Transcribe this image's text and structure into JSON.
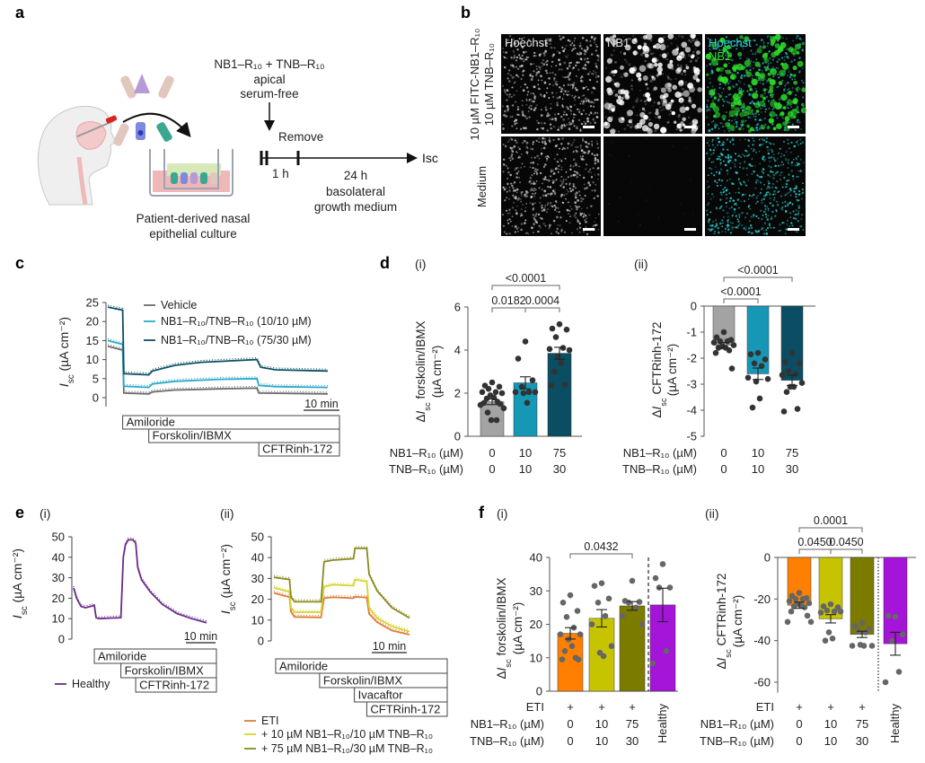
{
  "panel_labels": {
    "a": "a",
    "b": "b",
    "c": "c",
    "d": "d",
    "e": "e",
    "f": "f"
  },
  "schematic": {
    "treatment": "NB1–R₁₀ + TNB–R₁₀",
    "apical": "apical",
    "serum_free": "serum-free",
    "remove": "Remove",
    "t1": "1 h",
    "t2": "24 h",
    "basolateral": "basolateral",
    "growth_medium": "growth medium",
    "readout": "Isc",
    "culture_line1": "Patient-derived nasal",
    "culture_line2": "epithelial culture"
  },
  "microscopy": {
    "row_labels": [
      [
        "10 µM FITC-NB1–R₁₀",
        "10 µM TNB–R₁₀"
      ],
      [
        "Medium"
      ]
    ],
    "column_labels": [
      "Hoechst",
      "NB1"
    ],
    "merge_labels": [
      "Hoechst",
      "NB1"
    ],
    "colors": {
      "hoechst": "#2fd6d6",
      "nb1": "#2be02b"
    }
  },
  "chart_data": [
    {
      "type": "line",
      "ylabel": [
        "Isc (µA cm⁻²)"
      ],
      "ylim": [
        0,
        25
      ],
      "yticks": [
        0,
        5,
        10,
        15,
        20,
        25
      ],
      "xlim": [
        0,
        59
      ],
      "xunit": "min",
      "scale_bar": "10 min",
      "treatments": [
        {
          "label": "Amiloride",
          "start": 4
        },
        {
          "label": "Forskolin/IBMX",
          "start": 11
        },
        {
          "label": "CFTRinh-172",
          "start": 40.5
        }
      ],
      "series": [
        {
          "name": "Vehicle",
          "color": "#6b6b6b",
          "points": [
            [
              0,
              13.5
            ],
            [
              4,
              12.5
            ],
            [
              4.3,
              1.2
            ],
            [
              11,
              1
            ],
            [
              12,
              1.5
            ],
            [
              18,
              2
            ],
            [
              30,
              2.3
            ],
            [
              40,
              2.5
            ],
            [
              40.5,
              1.2
            ],
            [
              59,
              1
            ]
          ]
        },
        {
          "name": "NB1–R₁₀/TNB–R₁₀ (10/10 µM)",
          "color": "#2aa9c8",
          "points": [
            [
              0,
              15
            ],
            [
              4,
              14
            ],
            [
              4.3,
              3
            ],
            [
              11,
              2.7
            ],
            [
              12,
              3.6
            ],
            [
              18,
              4.3
            ],
            [
              30,
              4.8
            ],
            [
              40,
              5
            ],
            [
              40.5,
              3.2
            ],
            [
              45,
              2.9
            ],
            [
              59,
              2.7
            ]
          ]
        },
        {
          "name": "NB1–R₁₀/TNB–R₁₀ (75/30 µM)",
          "color": "#0d4f66",
          "points": [
            [
              0,
              23.8
            ],
            [
              4,
              23
            ],
            [
              4.3,
              6.3
            ],
            [
              11,
              6
            ],
            [
              12,
              7
            ],
            [
              18,
              8.5
            ],
            [
              25,
              9.3
            ],
            [
              40,
              10
            ],
            [
              41,
              8
            ],
            [
              45,
              7.3
            ],
            [
              59,
              7
            ]
          ]
        }
      ]
    },
    {
      "type": "bar",
      "sub_label": "(i)",
      "ylabel": [
        "ΔIsc forskolin/IBMX",
        "(µA cm⁻²)"
      ],
      "ylim": [
        0,
        6
      ],
      "yticks": [
        0,
        2,
        4,
        6
      ],
      "row_labels": [
        "NB1–R₁₀ (µM)",
        "TNB–R₁₀ (µM)"
      ],
      "categories": [
        [
          "0",
          "0"
        ],
        [
          "10",
          "10"
        ],
        [
          "75",
          "30"
        ]
      ],
      "values": [
        1.6,
        2.48,
        3.85
      ],
      "sem": [
        0.13,
        0.28,
        0.28
      ],
      "colors": [
        "#a3a3a3",
        "#1597b5",
        "#0b4d63"
      ],
      "point_color": "#333333",
      "points": [
        [
          2.5,
          2.35,
          2.3,
          2.2,
          2.05,
          2.05,
          2.0,
          1.9,
          1.8,
          1.75,
          1.6,
          1.55,
          1.5,
          1.45,
          1.3,
          1.1,
          0.75,
          0.75
        ],
        [
          4.4,
          3.6,
          2.6,
          2.3,
          2.05,
          2.05,
          2.05,
          2.0,
          1.55
        ],
        [
          5.2,
          5.0,
          4.95,
          4.6,
          4.1,
          4.05,
          4.0,
          3.7,
          3.4,
          3.0,
          2.4,
          2.35
        ]
      ],
      "comparisons": [
        {
          "from": 0,
          "to": 1,
          "p": "0.0182"
        },
        {
          "from": 1,
          "to": 2,
          "p": "0.0004"
        },
        {
          "from": 0,
          "to": 2,
          "p": "<0.0001"
        }
      ]
    },
    {
      "type": "bar",
      "sub_label": "(ii)",
      "ylabel": [
        "ΔIsc CFTRinh-172",
        "(µA cm⁻²)"
      ],
      "ylim": [
        -5,
        0
      ],
      "yticks": [
        0,
        -1,
        -2,
        -3,
        -4,
        -5
      ],
      "row_labels": [
        "NB1–R₁₀ (µM)",
        "TNB–R₁₀ (µM)"
      ],
      "categories": [
        [
          "0",
          "0"
        ],
        [
          "10",
          "10"
        ],
        [
          "75",
          "30"
        ]
      ],
      "values": [
        -1.5,
        -2.6,
        -2.85
      ],
      "sem": [
        0.1,
        0.22,
        0.2
      ],
      "colors": [
        "#a3a3a3",
        "#1597b5",
        "#0b4d63"
      ],
      "point_color": "#333333",
      "points": [
        [
          -1.0,
          -1.2,
          -1.3,
          -1.35,
          -1.35,
          -1.4,
          -1.5,
          -1.55,
          -1.6,
          -1.6,
          -1.7,
          -1.8,
          -2.4
        ],
        [
          -1.8,
          -1.85,
          -2.05,
          -2.2,
          -2.3,
          -2.75,
          -2.8,
          -2.9,
          -3.55,
          -3.9
        ],
        [
          -1.8,
          -2.15,
          -2.2,
          -2.5,
          -2.6,
          -2.65,
          -2.95,
          -3.1,
          -3.1,
          -3.3,
          -3.95,
          -4.05
        ]
      ],
      "comparisons": [
        {
          "from": 0,
          "to": 1,
          "p": "<0.0001"
        },
        {
          "from": 0,
          "to": 2,
          "p": "<0.0001"
        }
      ]
    },
    {
      "type": "line",
      "sub_label": "(i)",
      "ylabel": [
        "Isc (µA cm⁻²)"
      ],
      "ylim": [
        0,
        50
      ],
      "yticks": [
        0,
        10,
        20,
        30,
        40,
        50
      ],
      "xlim": [
        0,
        45
      ],
      "xunit": "min",
      "scale_bar": "10 min",
      "treatments": [
        {
          "label": "Amiloride",
          "start": 7
        },
        {
          "label": "Forskolin/IBMX",
          "start": 16
        },
        {
          "label": "CFTRinh-172",
          "start": 21
        }
      ],
      "series": [
        {
          "name": "Healthy",
          "color": "#6a2c8a",
          "points": [
            [
              0,
              25
            ],
            [
              1,
              20
            ],
            [
              2.5,
              16
            ],
            [
              4,
              15.3
            ],
            [
              7,
              16.5
            ],
            [
              7.6,
              10.5
            ],
            [
              8.5,
              10
            ],
            [
              16,
              10.5
            ],
            [
              16.8,
              40
            ],
            [
              17.5,
              46
            ],
            [
              18.5,
              48.5
            ],
            [
              20,
              48.5
            ],
            [
              21,
              47
            ],
            [
              21.7,
              35
            ],
            [
              23,
              29
            ],
            [
              26,
              23
            ],
            [
              30,
              17
            ],
            [
              35,
              12.5
            ],
            [
              40,
              10
            ],
            [
              45,
              8
            ]
          ]
        }
      ]
    },
    {
      "type": "line",
      "sub_label": "(ii)",
      "ylabel": [
        "Isc (µA cm⁻²)"
      ],
      "ylim": [
        0,
        50
      ],
      "yticks": [
        0,
        10,
        20,
        30,
        40,
        50
      ],
      "xlim": [
        0,
        46
      ],
      "xunit": "min",
      "scale_bar": "10 min",
      "treatments": [
        {
          "label": "Amiloride",
          "start": 0.6
        },
        {
          "label": "Forskolin/IBMX",
          "start": 15.5
        },
        {
          "label": "Ivacaftor",
          "start": 27.3
        },
        {
          "label": "CFTRinh-172",
          "start": 31.5
        }
      ],
      "series": [
        {
          "name": "ETI",
          "color": "#e07b39",
          "points": [
            [
              0,
              23
            ],
            [
              5.3,
              21
            ],
            [
              5.8,
              14
            ],
            [
              7,
              11.5
            ],
            [
              16,
              11.3
            ],
            [
              17,
              20.5
            ],
            [
              20,
              21
            ],
            [
              27,
              20.5
            ],
            [
              27.5,
              21.2
            ],
            [
              31.5,
              20.8
            ],
            [
              32.3,
              13
            ],
            [
              35,
              9
            ],
            [
              40,
              5
            ],
            [
              46,
              3
            ]
          ]
        },
        {
          "name": "+ 10 µM NB1–R₁₀/10 µM TNB–R₁₀",
          "color": "#d4d430",
          "points": [
            [
              0,
              25.5
            ],
            [
              5.3,
              23.5
            ],
            [
              5.8,
              16
            ],
            [
              7,
              13.8
            ],
            [
              16,
              13.8
            ],
            [
              17,
              26
            ],
            [
              20,
              27
            ],
            [
              27,
              26.5
            ],
            [
              27.5,
              29.5
            ],
            [
              31.5,
              28.5
            ],
            [
              32.3,
              16
            ],
            [
              35,
              11
            ],
            [
              40,
              7
            ],
            [
              46,
              4.5
            ]
          ]
        },
        {
          "name": "+ 75 µM NB1–R₁₀/30 µM TNB–R₁₀",
          "color": "#8a8a20",
          "points": [
            [
              0,
              30.5
            ],
            [
              5.3,
              29.5
            ],
            [
              5.8,
              21
            ],
            [
              7,
              18.8
            ],
            [
              16,
              18.8
            ],
            [
              17,
              38
            ],
            [
              20,
              38.8
            ],
            [
              27,
              39.5
            ],
            [
              27.5,
              44.5
            ],
            [
              31.5,
              44.5
            ],
            [
              32.3,
              32
            ],
            [
              35,
              24
            ],
            [
              40,
              16
            ],
            [
              46,
              11
            ]
          ]
        }
      ]
    },
    {
      "type": "bar",
      "sub_label": "(i)",
      "ylabel": [
        "ΔIsc forskolin/IBMX",
        "(µA cm⁻²)"
      ],
      "ylim": [
        0,
        40
      ],
      "yticks": [
        0,
        10,
        20,
        30,
        40
      ],
      "row_labels": [
        "ETI",
        "NB1–R₁₀ (µM)",
        "TNB–R₁₀ (µM)"
      ],
      "categories": [
        [
          "+",
          "0",
          "0"
        ],
        [
          "+",
          "10",
          "10"
        ],
        [
          "+",
          "75",
          "30"
        ],
        [
          "Healthy"
        ]
      ],
      "values": [
        17.3,
        21.8,
        25.5,
        25.8
      ],
      "sem": [
        1.7,
        2.6,
        1.3,
        5.0
      ],
      "colors": [
        "#ff8000",
        "#c6c400",
        "#7b7b00",
        "#a414d9"
      ],
      "point_color": "#666666",
      "separator": "dashed",
      "points": [
        [
          28.7,
          26.5,
          24,
          22.2,
          19,
          17,
          17,
          15.5,
          13.5,
          12,
          10,
          9.5,
          9.5
        ],
        [
          32.3,
          31.5,
          27.7,
          26.5,
          22.5,
          20,
          13.5,
          11.5,
          10.5
        ],
        [
          33,
          27,
          26.7,
          26.5,
          25,
          22.5,
          20
        ],
        [
          38,
          33.8,
          31,
          31,
          12,
          8.3
        ]
      ],
      "comparisons": [
        {
          "from": 0,
          "to": 2,
          "p": "0.0432"
        }
      ]
    },
    {
      "type": "bar",
      "sub_label": "(ii)",
      "ylabel": [
        "ΔIsc CFTRinh-172",
        "(µA cm⁻²)"
      ],
      "ylim": [
        -65,
        0
      ],
      "yticks": [
        0,
        -20,
        -40,
        -60
      ],
      "row_labels": [
        "ETI",
        "NB1–R₁₀ (µM)",
        "TNB–R₁₀ (µM)"
      ],
      "categories": [
        [
          "+",
          "0",
          "0"
        ],
        [
          "+",
          "10",
          "10"
        ],
        [
          "+",
          "75",
          "30"
        ],
        [
          "Healthy"
        ]
      ],
      "values": [
        -23,
        -29.5,
        -37,
        -41.5
      ],
      "sem": [
        1.5,
        2.0,
        1.5,
        5.5
      ],
      "colors": [
        "#ff8000",
        "#c6c400",
        "#7b7b00",
        "#a414d9"
      ],
      "point_color": "#666666",
      "separator": "dotted",
      "points": [
        [
          -17,
          -18.5,
          -19.5,
          -20,
          -20,
          -21,
          -22,
          -22.5,
          -23,
          -23.5,
          -24,
          -26,
          -28,
          -31,
          -31
        ],
        [
          -22.5,
          -23.5,
          -24,
          -25.5,
          -26,
          -26.5,
          -26,
          -36,
          -39,
          -40
        ],
        [
          -31.5,
          -33,
          -34.5,
          -35.5,
          -36,
          -42.5,
          -42.5,
          -42,
          -42.5
        ],
        [
          -28.5,
          -28,
          -37,
          -40,
          -55,
          -60
        ]
      ],
      "comparisons": [
        {
          "from": 0,
          "to": 1,
          "p": "0.0450"
        },
        {
          "from": 1,
          "to": 2,
          "p": "0.0450"
        },
        {
          "from": 0,
          "to": 2,
          "p": "0.0001"
        }
      ]
    }
  ]
}
